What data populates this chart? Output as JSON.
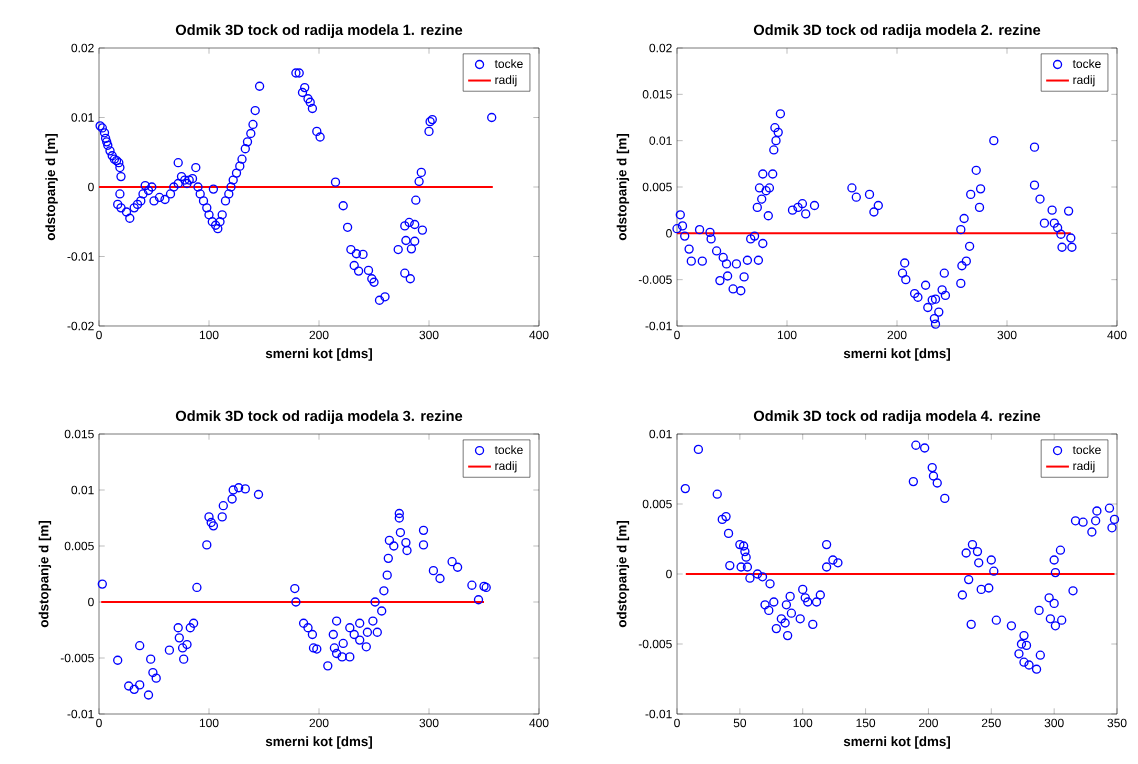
{
  "chart_data": [
    {
      "type": "scatter",
      "title": "Odmik 3D tock od radija modela 1. rezine",
      "xlabel": "smerni kot [dms]",
      "ylabel": "odstopanje d [m]",
      "xlim": [
        0,
        400
      ],
      "ylim": [
        -0.02,
        0.02
      ],
      "xticks": [
        0,
        100,
        200,
        300,
        400
      ],
      "yticks": [
        -0.02,
        -0.01,
        0,
        0.01,
        0.02
      ],
      "legend": "top right",
      "series": [
        {
          "name": "tocke",
          "color": "#0000ff",
          "marker": "circle",
          "x": [
            1,
            3,
            5,
            6,
            7,
            8,
            10,
            12,
            14,
            16,
            18,
            19,
            20,
            19,
            17,
            20,
            25,
            28,
            32,
            35,
            38,
            40,
            42,
            45,
            48,
            50,
            55,
            60,
            65,
            68,
            72,
            75,
            72,
            78,
            80,
            82,
            85,
            88,
            90,
            92,
            95,
            98,
            100,
            103,
            106,
            108,
            110,
            112,
            104,
            115,
            118,
            120,
            122,
            125,
            128,
            130,
            133,
            135,
            138,
            140,
            142,
            146,
            179,
            182,
            187,
            185,
            190,
            194,
            192,
            198,
            201,
            215,
            222,
            226,
            229,
            234,
            240,
            236,
            232,
            245,
            248,
            250,
            255,
            260,
            272,
            278,
            283,
            279,
            284,
            287,
            278,
            282,
            287,
            294,
            288,
            291,
            293,
            300,
            301,
            303,
            357
          ],
          "values": [
            0.0088,
            0.0085,
            0.0078,
            0.007,
            0.0065,
            0.006,
            0.0052,
            0.0045,
            0.004,
            0.0038,
            0.0035,
            0.0028,
            0.0015,
            -0.001,
            -0.0025,
            -0.003,
            -0.0036,
            -0.0045,
            -0.003,
            -0.0025,
            -0.002,
            -0.001,
            0.0002,
            -0.0005,
            0,
            -0.002,
            -0.0015,
            -0.0018,
            -0.001,
            0,
            0.0005,
            0.0015,
            0.0035,
            0.001,
            0.0005,
            0.001,
            0.0012,
            0.0028,
            0,
            -0.001,
            -0.002,
            -0.003,
            -0.004,
            -0.005,
            -0.0055,
            -0.006,
            -0.005,
            -0.004,
            -0.0003,
            -0.002,
            -0.001,
            0,
            0.001,
            0.002,
            0.003,
            0.004,
            0.0055,
            0.0065,
            0.0077,
            0.009,
            0.011,
            0.0145,
            0.0164,
            0.0164,
            0.0143,
            0.0136,
            0.0127,
            0.0113,
            0.0122,
            0.008,
            0.0072,
            0.0007,
            -0.0027,
            -0.0058,
            -0.009,
            -0.0096,
            -0.0097,
            -0.0121,
            -0.0113,
            -0.012,
            -0.0132,
            -0.0137,
            -0.0163,
            -0.0158,
            -0.009,
            -0.0124,
            -0.0132,
            -0.0077,
            -0.0089,
            -0.0078,
            -0.0056,
            -0.0051,
            -0.0054,
            -0.0062,
            -0.0019,
            0.0008,
            0.0021,
            0.008,
            0.0094,
            0.0097,
            0.01
          ]
        },
        {
          "name": "radij",
          "type": "line",
          "color": "#ff0000",
          "x": [
            0,
            358
          ],
          "values": [
            0,
            0
          ]
        }
      ]
    },
    {
      "type": "scatter",
      "title": "Odmik 3D tock od radija modela 2. rezine",
      "xlabel": "smerni kot [dms]",
      "ylabel": "odstopanje d [m]",
      "xlim": [
        0,
        400
      ],
      "ylim": [
        -0.01,
        0.02
      ],
      "xticks": [
        0,
        100,
        200,
        300,
        400
      ],
      "yticks": [
        -0.01,
        -0.005,
        0,
        0.005,
        0.01,
        0.015,
        0.02
      ],
      "legend": "top right",
      "series": [
        {
          "name": "tocke",
          "color": "#0000ff",
          "marker": "circle",
          "x": [
            3,
            0,
            5,
            7,
            11,
            13,
            20.5,
            23,
            30,
            31,
            36,
            39,
            42,
            45,
            46,
            51,
            54,
            58,
            61,
            64,
            67,
            70.5,
            74,
            78,
            73,
            77,
            75,
            78,
            81,
            84,
            83,
            87,
            88,
            90,
            92,
            89,
            94,
            105,
            110,
            114,
            117,
            125,
            159,
            163,
            175,
            179,
            183,
            207,
            205,
            208,
            216,
            219,
            226,
            228,
            232,
            235,
            238,
            234,
            235,
            241,
            244,
            243,
            258,
            259,
            263,
            266,
            258,
            261,
            267,
            272,
            276,
            275,
            288,
            325,
            325,
            330,
            334,
            341,
            343,
            346,
            349,
            350,
            356,
            358,
            359
          ],
          "values": [
            0.002,
            0.0005,
            0.0008,
            -0.0003,
            -0.0017,
            -0.003,
            0.0004,
            -0.003,
            0.0001,
            -0.0006,
            -0.0019,
            -0.0051,
            -0.0026,
            -0.0033,
            -0.0046,
            -0.006,
            -0.0033,
            -0.0062,
            -0.0047,
            -0.0029,
            -0.0006,
            -0.0003,
            -0.0029,
            -0.0011,
            0.0028,
            0.0037,
            0.0049,
            0.0064,
            0.0046,
            0.0049,
            0.0019,
            0.0064,
            0.009,
            0.01,
            0.0109,
            0.0114,
            0.0129,
            0.0025,
            0.0028,
            0.0032,
            0.0021,
            0.003,
            0.0049,
            0.0039,
            0.0042,
            0.0023,
            0.003,
            -0.0032,
            -0.0043,
            -0.005,
            -0.0065,
            -0.0069,
            -0.0056,
            -0.008,
            -0.0072,
            -0.0071,
            -0.0085,
            -0.0092,
            -0.0098,
            -0.0061,
            -0.0067,
            -0.0043,
            -0.0054,
            -0.0035,
            -0.003,
            -0.0014,
            0.0004,
            0.0016,
            0.0042,
            0.0068,
            0.0048,
            0.0028,
            0.01,
            0.0093,
            0.0052,
            0.0037,
            0.0011,
            0.0025,
            0.0011,
            0.0006,
            -0.0001,
            -0.0015,
            0.0024,
            -0.0005,
            -0.0015
          ]
        },
        {
          "name": "radij",
          "type": "line",
          "color": "#ff0000",
          "x": [
            0,
            358
          ],
          "values": [
            0,
            0
          ]
        }
      ]
    },
    {
      "type": "scatter",
      "title": "Odmik 3D tock od radija modela 3. rezine",
      "xlabel": "smerni kot [dms]",
      "ylabel": "odstopanje d [m]",
      "xlim": [
        0,
        400
      ],
      "ylim": [
        -0.01,
        0.015
      ],
      "xticks": [
        0,
        100,
        200,
        300,
        400
      ],
      "yticks": [
        -0.01,
        -0.005,
        0,
        0.005,
        0.01,
        0.015
      ],
      "legend": "top right",
      "series": [
        {
          "name": "tocke",
          "color": "#0000ff",
          "marker": "circle",
          "x": [
            3,
            17,
            27,
            32,
            37,
            37,
            45,
            47,
            49,
            52,
            64,
            72,
            73,
            76,
            77,
            80,
            83,
            86,
            89,
            98,
            100,
            102,
            104,
            112,
            113,
            121,
            122,
            127,
            133,
            145,
            178,
            179,
            186,
            190,
            194,
            195,
            198,
            208,
            213,
            216,
            214,
            216,
            221,
            222,
            228,
            228,
            232,
            237,
            237,
            243,
            244,
            249,
            253,
            251,
            257,
            259,
            262,
            263,
            264,
            268,
            273,
            273,
            274,
            279,
            280,
            295,
            295,
            304,
            310,
            321,
            326,
            339,
            345,
            350,
            352
          ],
          "values": [
            0.0016,
            -0.0052,
            -0.0075,
            -0.0078,
            -0.0074,
            -0.0039,
            -0.0083,
            -0.0051,
            -0.0063,
            -0.0068,
            -0.0043,
            -0.0023,
            -0.0032,
            -0.0041,
            -0.0051,
            -0.0038,
            -0.0023,
            -0.0019,
            0.0013,
            0.0051,
            0.0076,
            0.0071,
            0.0068,
            0.0076,
            0.0086,
            0.0092,
            0.01,
            0.0102,
            0.0101,
            0.0096,
            0.0012,
            0,
            -0.0019,
            -0.0023,
            -0.0029,
            -0.0041,
            -0.0042,
            -0.0057,
            -0.0029,
            -0.0017,
            -0.0041,
            -0.0046,
            -0.0049,
            -0.0037,
            -0.0049,
            -0.0023,
            -0.0029,
            -0.0019,
            -0.0034,
            -0.004,
            -0.0027,
            -0.0017,
            -0.0027,
            0,
            -0.0008,
            0.001,
            0.0024,
            0.0039,
            0.0055,
            0.005,
            0.0079,
            0.0075,
            0.0062,
            0.0053,
            0.0046,
            0.0064,
            0.0051,
            0.0028,
            0.0021,
            0.0036,
            0.0031,
            0.0015,
            0.0002,
            0.0014,
            0.0013
          ]
        },
        {
          "name": "radij",
          "type": "line",
          "color": "#ff0000",
          "x": [
            2,
            350
          ],
          "values": [
            0,
            0
          ]
        }
      ]
    },
    {
      "type": "scatter",
      "title": "Odmik 3D tock od radija modela 4. rezine",
      "xlabel": "smerni kot [dms]",
      "ylabel": "odstopanje d [m]",
      "xlim": [
        0,
        350
      ],
      "ylim": [
        -0.01,
        0.01
      ],
      "xticks": [
        0,
        50,
        100,
        150,
        200,
        250,
        300,
        350
      ],
      "yticks": [
        -0.01,
        -0.005,
        0,
        0.005,
        0.01
      ],
      "legend": "top right",
      "series": [
        {
          "name": "tocke",
          "color": "#0000ff",
          "marker": "circle",
          "x": [
            6.6,
            17,
            32,
            36,
            39,
            41,
            42,
            50,
            53,
            54,
            55,
            51,
            56,
            58,
            64,
            68,
            74,
            70,
            73,
            77,
            79,
            83,
            86,
            88,
            87,
            90,
            91,
            98,
            100,
            102,
            104,
            108,
            111,
            114,
            119,
            119,
            124,
            128,
            190,
            197,
            188,
            203,
            204,
            207,
            213,
            227,
            230,
            232,
            234,
            235,
            239,
            240,
            242,
            248,
            250,
            252,
            254,
            266,
            272,
            276,
            274,
            278,
            276,
            280,
            286,
            289,
            288,
            296,
            297,
            300,
            301,
            306,
            300,
            301,
            305,
            315,
            317,
            323,
            330,
            333,
            334,
            344,
            348,
            346
          ],
          "values": [
            0.0061,
            0.0089,
            0.0057,
            0.0039,
            0.0041,
            0.0029,
            0.0006,
            0.0021,
            0.002,
            0.0016,
            0.0012,
            0.0005,
            0.0005,
            -0.0003,
            0,
            -0.0002,
            -0.0007,
            -0.0022,
            -0.0026,
            -0.002,
            -0.0039,
            -0.0032,
            -0.0035,
            -0.0044,
            -0.0022,
            -0.0016,
            -0.0028,
            -0.0032,
            -0.0011,
            -0.0017,
            -0.002,
            -0.0036,
            -0.002,
            -0.0015,
            0.0005,
            0.0021,
            0.001,
            0.0008,
            0.0092,
            0.009,
            0.0066,
            0.0076,
            0.007,
            0.0065,
            0.0054,
            -0.0015,
            0.0015,
            -0.0004,
            -0.0036,
            0.0021,
            0.0016,
            0.0008,
            -0.0011,
            -0.001,
            0.001,
            0.0002,
            -0.0033,
            -0.0037,
            -0.0057,
            -0.0044,
            -0.005,
            -0.0051,
            -0.0063,
            -0.0065,
            -0.0068,
            -0.0058,
            -0.0026,
            -0.0017,
            -0.0032,
            -0.0021,
            -0.0037,
            -0.0033,
            0.001,
            0.0001,
            0.0017,
            -0.0012,
            0.0038,
            0.0037,
            0.003,
            0.0038,
            0.0045,
            0.0047,
            0.0039,
            0.0033
          ]
        },
        {
          "name": "radij",
          "type": "line",
          "color": "#ff0000",
          "x": [
            7,
            348
          ],
          "values": [
            0,
            0
          ]
        }
      ]
    }
  ]
}
